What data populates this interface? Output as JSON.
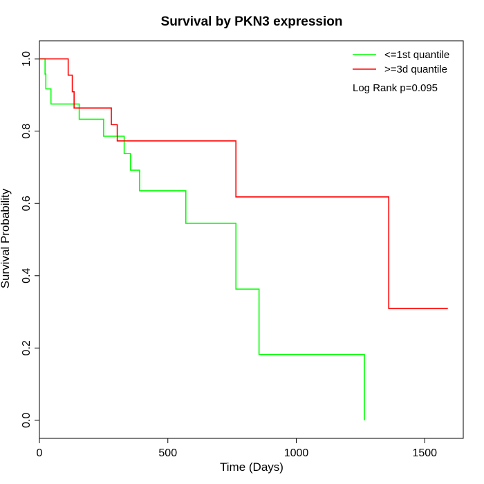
{
  "chart_data": {
    "type": "line",
    "title": "Survival by PKN3 expression",
    "xlabel": "Time (Days)",
    "ylabel": "Survival Probability",
    "xlim": [
      0,
      1650
    ],
    "ylim": [
      -0.05,
      1.05
    ],
    "x_ticks": [
      0,
      500,
      1000,
      1500
    ],
    "y_ticks": [
      0.0,
      0.2,
      0.4,
      0.6,
      0.8,
      1.0
    ],
    "x_tick_labels": [
      "0",
      "500",
      "1000",
      "1500"
    ],
    "y_tick_labels": [
      "0.0",
      "0.2",
      "0.4",
      "0.6",
      "0.8",
      "1.0"
    ],
    "grid": false,
    "legend": "top-right",
    "annotation": "Log Rank p=0.095",
    "series": [
      {
        "name": "<=1st quantile",
        "color": "#00ff00",
        "step": true,
        "x": [
          0,
          22,
          25,
          45,
          155,
          250,
          330,
          355,
          390,
          570,
          765,
          855,
          1265
        ],
        "y": [
          1.0,
          0.958,
          0.917,
          0.875,
          0.833,
          0.786,
          0.738,
          0.692,
          0.635,
          0.545,
          0.363,
          0.182,
          0.0
        ]
      },
      {
        "name": ">=3d quantile",
        "color": "#ff0000",
        "step": true,
        "x": [
          0,
          112,
          128,
          135,
          280,
          303,
          765,
          1360,
          1590
        ],
        "y": [
          1.0,
          0.955,
          0.909,
          0.864,
          0.818,
          0.773,
          0.618,
          0.309,
          0.309
        ]
      }
    ]
  }
}
